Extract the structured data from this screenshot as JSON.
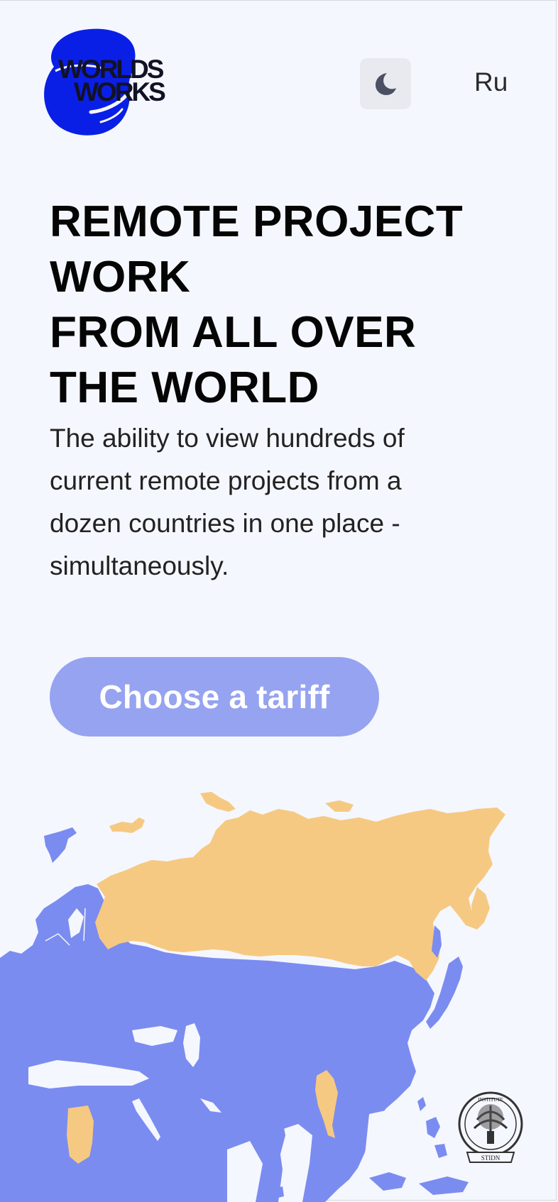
{
  "header": {
    "logo": {
      "line1": "WORLDS",
      "line2": "WORKS",
      "brand_color": "#0a1fe6"
    },
    "theme_toggle": {
      "icon": "moon-icon"
    },
    "language": "Ru"
  },
  "hero": {
    "title_lines": [
      "REMOTE PROJECT",
      "WORK",
      "FROM ALL OVER",
      "THE WORLD"
    ],
    "subtitle": "The ability to view hundreds of current remote projects from a dozen countries in one place - simultaneously.",
    "cta_label": "Choose a tariff"
  },
  "map": {
    "icon": "world-map",
    "highlight_color": "#f6c982",
    "base_color": "#7b8cf0"
  },
  "stamp": {
    "icon": "institute-seal-icon",
    "text_top": "INSTITUTE",
    "text_bottom": "STIDN"
  },
  "colors": {
    "background": "#f5f7fe",
    "cta": "#96a3f0"
  }
}
